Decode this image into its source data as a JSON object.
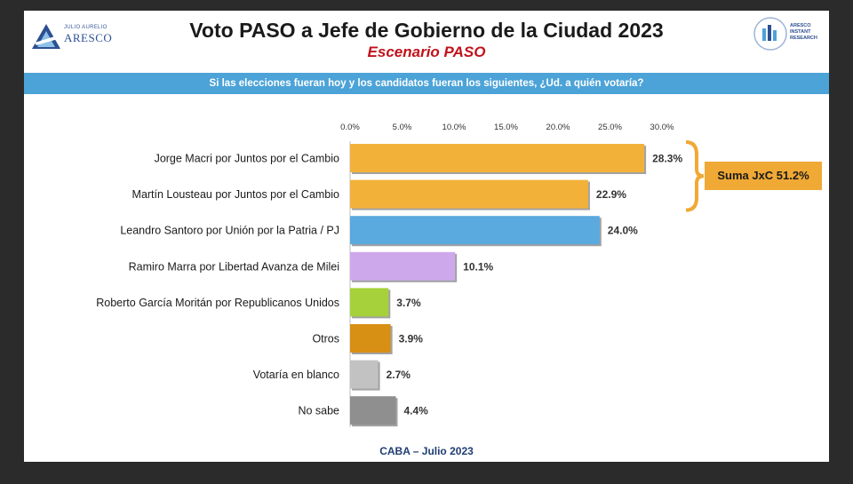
{
  "header": {
    "title": "Voto PASO a Jefe de Gobierno de la Ciudad 2023",
    "subtitle": "Escenario PASO",
    "question": "Si las elecciones fueran hoy y los candidatos fueran los siguientes, ¿Ud. a quién votaría?"
  },
  "logos": {
    "left_small": "JULIO AURELIO",
    "left_big": "ARESCO",
    "right_lines": [
      "ARESCO",
      "INSTANT",
      "RESEARCH"
    ]
  },
  "annotation": {
    "sum_label": "Suma JxC 51.2%"
  },
  "footer": "CABA – Julio 2023",
  "colors": {
    "band": "#4ca3d8",
    "orange": "#f2b23a",
    "blue": "#5aa9df",
    "lilac": "#cda9ec",
    "green": "#a6d13a",
    "dark_orange": "#d78f14",
    "light_gray": "#c2c2c2",
    "gray": "#8f8f8f",
    "sum_box": "#f0a934"
  },
  "chart_data": {
    "type": "bar",
    "orientation": "horizontal",
    "categories": [
      "Jorge Macri por Juntos por el Cambio",
      "Martín Lousteau por Juntos por el Cambio",
      "Leandro Santoro por Unión por la Patria / PJ",
      "Ramiro Marra por Libertad Avanza de Milei",
      "Roberto García Moritán por Republicanos Unidos",
      "Otros",
      "Votaría en blanco",
      "No sabe"
    ],
    "values": [
      28.3,
      22.9,
      24.0,
      10.1,
      3.7,
      3.9,
      2.7,
      4.4
    ],
    "value_labels": [
      "28.3%",
      "22.9%",
      "24.0%",
      "10.1%",
      "3.7%",
      "3.9%",
      "2.7%",
      "4.4%"
    ],
    "bar_colors": [
      "#f2b23a",
      "#f2b23a",
      "#5aa9df",
      "#cda9ec",
      "#a6d13a",
      "#d78f14",
      "#c2c2c2",
      "#8f8f8f"
    ],
    "xlim": [
      0,
      30
    ],
    "ticks": [
      0,
      5,
      10,
      15,
      20,
      25,
      30
    ],
    "tick_labels": [
      "0.0%",
      "5.0%",
      "10.0%",
      "15.0%",
      "20.0%",
      "25.0%",
      "30.0%"
    ],
    "axis_position": "top",
    "grid": false,
    "legend": "none"
  }
}
